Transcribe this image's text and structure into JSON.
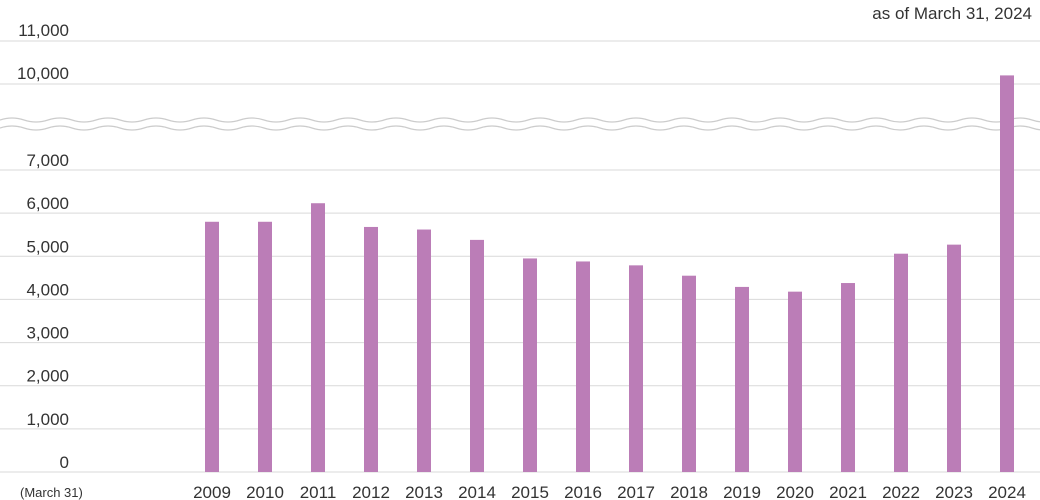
{
  "chart_data": {
    "type": "bar",
    "note": "as of March 31, 2024",
    "x_unit_label": "(March 31)",
    "categories": [
      "2009",
      "2010",
      "2011",
      "2012",
      "2013",
      "2014",
      "2015",
      "2016",
      "2017",
      "2018",
      "2019",
      "2020",
      "2021",
      "2022",
      "2023",
      "2024"
    ],
    "values": [
      5800,
      5800,
      6230,
      5680,
      5620,
      5380,
      4950,
      4880,
      4790,
      4550,
      4290,
      4180,
      4380,
      5060,
      5270,
      10200
    ],
    "y_ticks_lower": [
      "0",
      "1,000",
      "2,000",
      "3,000",
      "4,000",
      "5,000",
      "6,000",
      "7,000"
    ],
    "y_ticks_upper": [
      "10,000",
      "11,000"
    ],
    "ylim_lower": [
      0,
      7000
    ],
    "ylim_upper": [
      10000,
      11000
    ],
    "axis_break": true,
    "grid": true,
    "bar_color": "#bb7db7",
    "grid_color": "#d9d9d9"
  }
}
